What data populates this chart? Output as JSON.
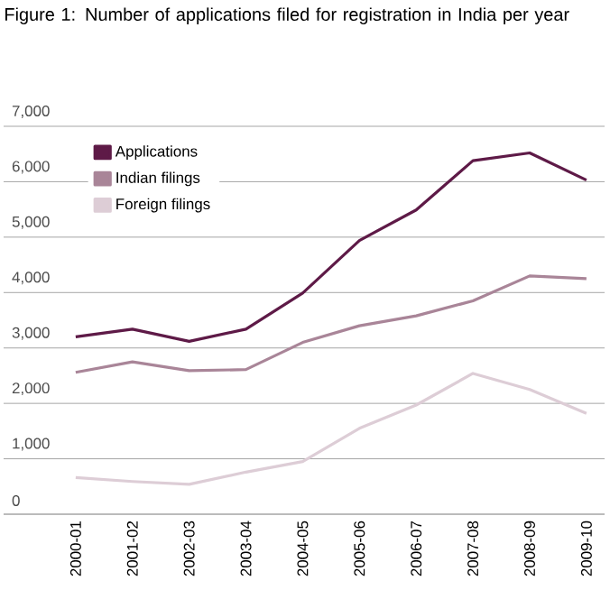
{
  "chart_data": {
    "type": "line",
    "title": "Figure 1: Number of applications filed for registration in India per year",
    "categories": [
      "2000-01",
      "2001-02",
      "2002-03",
      "2003-04",
      "2004-05",
      "2005-06",
      "2006-07",
      "2007-08",
      "2008-09",
      "2009-10"
    ],
    "series": [
      {
        "name": "Applications",
        "color": "#5e1a47",
        "values": [
          3200,
          3340,
          3120,
          3340,
          3990,
          4940,
          5490,
          6380,
          6520,
          6030
        ]
      },
      {
        "name": "Indian filings",
        "color": "#a98598",
        "values": [
          2560,
          2750,
          2590,
          2610,
          3100,
          3400,
          3580,
          3850,
          4300,
          4250
        ]
      },
      {
        "name": "Foreign filings",
        "color": "#ddcdd6",
        "values": [
          660,
          590,
          540,
          760,
          950,
          1550,
          1970,
          2540,
          2250,
          1820
        ]
      }
    ],
    "ylim": [
      0,
      7000
    ],
    "yticks": [
      {
        "value": 0,
        "label": "0"
      },
      {
        "value": 1000,
        "label": "1,000"
      },
      {
        "value": 2000,
        "label": "2,000"
      },
      {
        "value": 3000,
        "label": "3,000"
      },
      {
        "value": 4000,
        "label": "4,000"
      },
      {
        "value": 5000,
        "label": "5,000"
      },
      {
        "value": 6000,
        "label": "6,000"
      },
      {
        "value": 7000,
        "label": "7,000"
      }
    ],
    "grid": "y",
    "legend": "top left",
    "marker": "none",
    "line_style": "solid"
  }
}
